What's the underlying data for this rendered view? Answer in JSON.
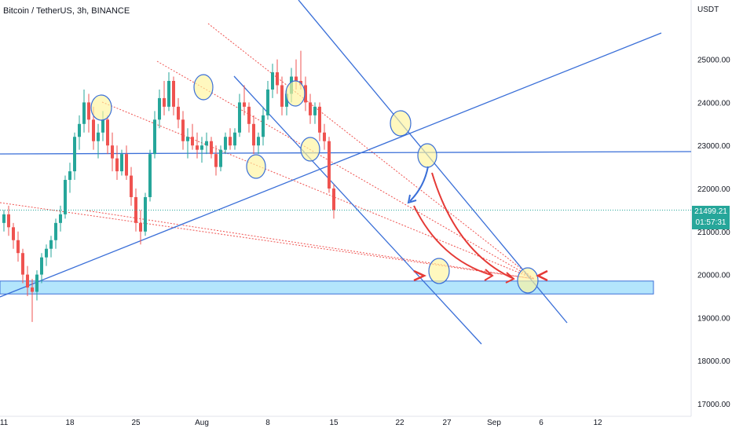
{
  "header": {
    "title": "Bitcoin / TetherUS, 3h, BINANCE",
    "unit": "USDT"
  },
  "price_tag": {
    "price": "21499.21",
    "countdown": "01:57:31"
  },
  "colors": {
    "up": "#26a69a",
    "down": "#ef5350",
    "trendline": "#3a6fd8",
    "dotted": "#ef5350",
    "zone": "#b3e5fc",
    "circle": "#fff59d",
    "arrow": "#e53935",
    "price_line": "#26a69a"
  },
  "chart_data": {
    "type": "candlestick",
    "title": "",
    "y_ticks": [
      "17000.00",
      "18000.00",
      "19000.00",
      "20000.00",
      "21000.00",
      "22000.00",
      "23000.00",
      "24000.00",
      "25000.00"
    ],
    "x_ticks": [
      {
        "label": "11",
        "day": 11
      },
      {
        "label": "18",
        "day": 18
      },
      {
        "label": "25",
        "day": 25
      },
      {
        "label": "Aug",
        "day": 32
      },
      {
        "label": "8",
        "day": 39
      },
      {
        "label": "15",
        "day": 46
      },
      {
        "label": "22",
        "day": 53
      },
      {
        "label": "27",
        "day": 58
      },
      {
        "label": "Sep",
        "day": 63
      },
      {
        "label": "6",
        "day": 68
      },
      {
        "label": "12",
        "day": 74
      }
    ],
    "ylim": [
      16800,
      25900
    ],
    "xlim": [
      11,
      77
    ],
    "last_price": 21499.21,
    "candles": [
      [
        11.0,
        21200,
        21500,
        21000,
        21400
      ],
      [
        11.5,
        21400,
        21600,
        20900,
        21100
      ],
      [
        12.0,
        21100,
        21200,
        20600,
        20800
      ],
      [
        12.5,
        20800,
        21000,
        20300,
        20500
      ],
      [
        13.0,
        20500,
        20600,
        19800,
        20000
      ],
      [
        13.5,
        20000,
        20200,
        19500,
        19700
      ],
      [
        14.0,
        19700,
        19900,
        18900,
        19600
      ],
      [
        14.5,
        19600,
        20100,
        19400,
        20000
      ],
      [
        15.0,
        20000,
        20500,
        19800,
        20400
      ],
      [
        15.5,
        20400,
        20700,
        20200,
        20600
      ],
      [
        16.0,
        20600,
        20900,
        20400,
        20800
      ],
      [
        16.5,
        20800,
        21300,
        20600,
        21200
      ],
      [
        17.0,
        21200,
        21600,
        21000,
        21400
      ],
      [
        17.5,
        21400,
        22300,
        21300,
        22200
      ],
      [
        18.0,
        22200,
        22600,
        21900,
        22400
      ],
      [
        18.5,
        22400,
        23300,
        22200,
        23200
      ],
      [
        19.0,
        23200,
        23700,
        22900,
        23500
      ],
      [
        19.5,
        23500,
        24300,
        23300,
        24000
      ],
      [
        20.0,
        24000,
        24200,
        23300,
        23600
      ],
      [
        20.5,
        23600,
        23900,
        22900,
        23100
      ],
      [
        21.0,
        23100,
        23500,
        22700,
        23300
      ],
      [
        21.5,
        23300,
        23800,
        23100,
        23600
      ],
      [
        22.0,
        23600,
        23700,
        22800,
        23000
      ],
      [
        22.5,
        23000,
        23300,
        22400,
        22700
      ],
      [
        23.0,
        22700,
        23000,
        22200,
        22400
      ],
      [
        23.5,
        22400,
        22900,
        22300,
        22800
      ],
      [
        24.0,
        22800,
        23000,
        22200,
        22300
      ],
      [
        24.5,
        22300,
        22500,
        21600,
        21800
      ],
      [
        25.0,
        21800,
        22000,
        21000,
        21200
      ],
      [
        25.5,
        21200,
        21500,
        20700,
        21000
      ],
      [
        26.0,
        21000,
        21900,
        20900,
        21800
      ],
      [
        26.5,
        21800,
        22900,
        21700,
        22800
      ],
      [
        27.0,
        22800,
        23800,
        22700,
        23600
      ],
      [
        27.5,
        23600,
        24300,
        23400,
        24100
      ],
      [
        28.0,
        24100,
        24500,
        23700,
        23900
      ],
      [
        28.5,
        23900,
        24700,
        23800,
        24500
      ],
      [
        29.0,
        24500,
        24600,
        23700,
        23900
      ],
      [
        29.5,
        23900,
        24100,
        23400,
        23600
      ],
      [
        30.0,
        23600,
        23800,
        22900,
        23100
      ],
      [
        30.5,
        23100,
        23400,
        22700,
        23200
      ],
      [
        31.0,
        23200,
        23500,
        22900,
        23000
      ],
      [
        31.5,
        23000,
        23300,
        22700,
        22900
      ],
      [
        32.0,
        22900,
        23200,
        22600,
        23000
      ],
      [
        32.5,
        23000,
        23300,
        22800,
        23100
      ],
      [
        33.0,
        23100,
        23200,
        22700,
        22800
      ],
      [
        33.5,
        22800,
        23000,
        22300,
        22500
      ],
      [
        34.0,
        22500,
        23000,
        22400,
        22900
      ],
      [
        34.5,
        22900,
        23300,
        22800,
        23200
      ],
      [
        35.0,
        23200,
        23400,
        22900,
        23000
      ],
      [
        35.5,
        23000,
        23400,
        22900,
        23300
      ],
      [
        36.0,
        23300,
        24200,
        23200,
        24000
      ],
      [
        36.5,
        24000,
        24400,
        23700,
        23900
      ],
      [
        37.0,
        23900,
        24000,
        23300,
        23500
      ],
      [
        37.5,
        23500,
        23700,
        22800,
        23000
      ],
      [
        38.0,
        23000,
        23300,
        22800,
        23200
      ],
      [
        38.5,
        23200,
        23900,
        23000,
        23700
      ],
      [
        39.0,
        23700,
        24500,
        23600,
        24300
      ],
      [
        39.5,
        24300,
        24900,
        24100,
        24700
      ],
      [
        40.0,
        24700,
        25000,
        24200,
        24400
      ],
      [
        40.5,
        24400,
        24600,
        23700,
        23900
      ],
      [
        41.0,
        23900,
        24300,
        23700,
        24200
      ],
      [
        41.5,
        24200,
        24800,
        24000,
        24600
      ],
      [
        42.0,
        24600,
        25000,
        24300,
        24500
      ],
      [
        42.5,
        24500,
        25200,
        24300,
        24400
      ],
      [
        43.0,
        24400,
        24600,
        23800,
        24000
      ],
      [
        43.5,
        24000,
        24200,
        23500,
        23700
      ],
      [
        44.0,
        23700,
        24000,
        23500,
        23900
      ],
      [
        44.5,
        23900,
        24000,
        23100,
        23300
      ],
      [
        45.0,
        23300,
        23500,
        22900,
        23100
      ],
      [
        45.5,
        23100,
        23200,
        21900,
        22000
      ],
      [
        46.0,
        22000,
        22100,
        21300,
        21500
      ]
    ]
  }
}
